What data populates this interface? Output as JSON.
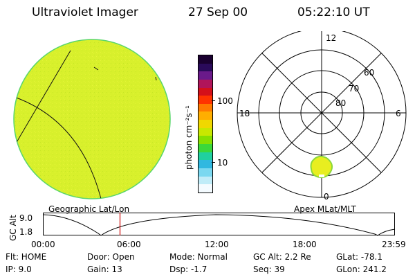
{
  "header": {
    "instrument": "Ultraviolet Imager",
    "date": "27 Sep 00",
    "time": "05:22:10 UT"
  },
  "colorbar": {
    "unit_label": "photon cm⁻²s⁻¹",
    "tick_100": "100",
    "tick_10": "10",
    "colors_top_to_bottom": [
      "#1a0030",
      "#2a0a5a",
      "#6a1a8a",
      "#b0155a",
      "#d4101a",
      "#ff3300",
      "#ff7a00",
      "#ffae00",
      "#f0d800",
      "#c8e800",
      "#86e000",
      "#3ad83a",
      "#20d0a0",
      "#30b8e0",
      "#7ad8f0",
      "#c0ecf8",
      "#f4fbff"
    ]
  },
  "left_panel": {
    "caption": "Geographic Lat/Lon",
    "fill_color": "#d8f02c"
  },
  "right_panel": {
    "caption": "Apex MLat/MLT",
    "mlt_labels": {
      "top": "12",
      "left": "18",
      "right": "6",
      "bottom": "0"
    },
    "lat_labels": [
      "60",
      "70",
      "80"
    ]
  },
  "altitude_strip": {
    "ylabel": "GC Alt",
    "y_top": "9.0",
    "y_bottom": "1.8",
    "x_ticks": [
      "00:00",
      "06:00",
      "12:00",
      "18:00",
      "23:59"
    ],
    "marker_color": "#cc0000"
  },
  "info": {
    "flt": "Flt: HOME",
    "ip": "IP:  9.0",
    "door": "Door: Open",
    "gain": "Gain: 13",
    "mode": "Mode: Normal",
    "dsp": "Dsp:   -1.7",
    "gc_alt": "GC Alt: 2.2 Re",
    "seq": "Seq: 39",
    "glat": "GLat: -78.1",
    "glon": "GLon: 241.2"
  }
}
